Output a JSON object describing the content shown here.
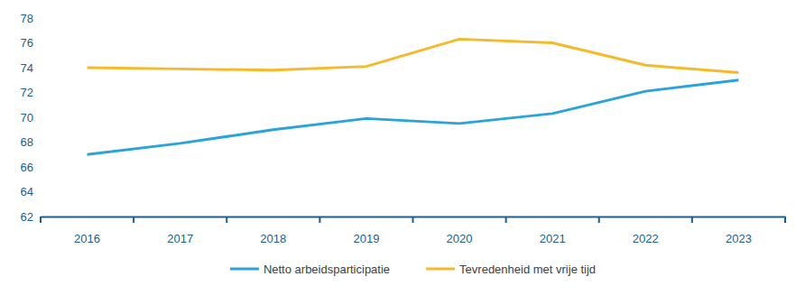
{
  "chart_data": {
    "type": "line",
    "categories": [
      "2016",
      "2017",
      "2018",
      "2019",
      "2020",
      "2021",
      "2022",
      "2023"
    ],
    "series": [
      {
        "name": "Netto arbeidsparticipatie",
        "color": "#29a3dc",
        "values": [
          67.0,
          67.9,
          69.0,
          69.9,
          69.5,
          70.3,
          72.1,
          73.0
        ]
      },
      {
        "name": "Tevredenheid met vrije tijd",
        "color": "#f6b92b",
        "values": [
          74.0,
          73.9,
          73.8,
          74.1,
          76.3,
          76.0,
          74.2,
          73.6
        ]
      }
    ],
    "ylim": [
      62,
      78
    ],
    "yticks": [
      62,
      64,
      66,
      68,
      70,
      72,
      74,
      76,
      78
    ],
    "grid": false,
    "legend": "bottom"
  }
}
